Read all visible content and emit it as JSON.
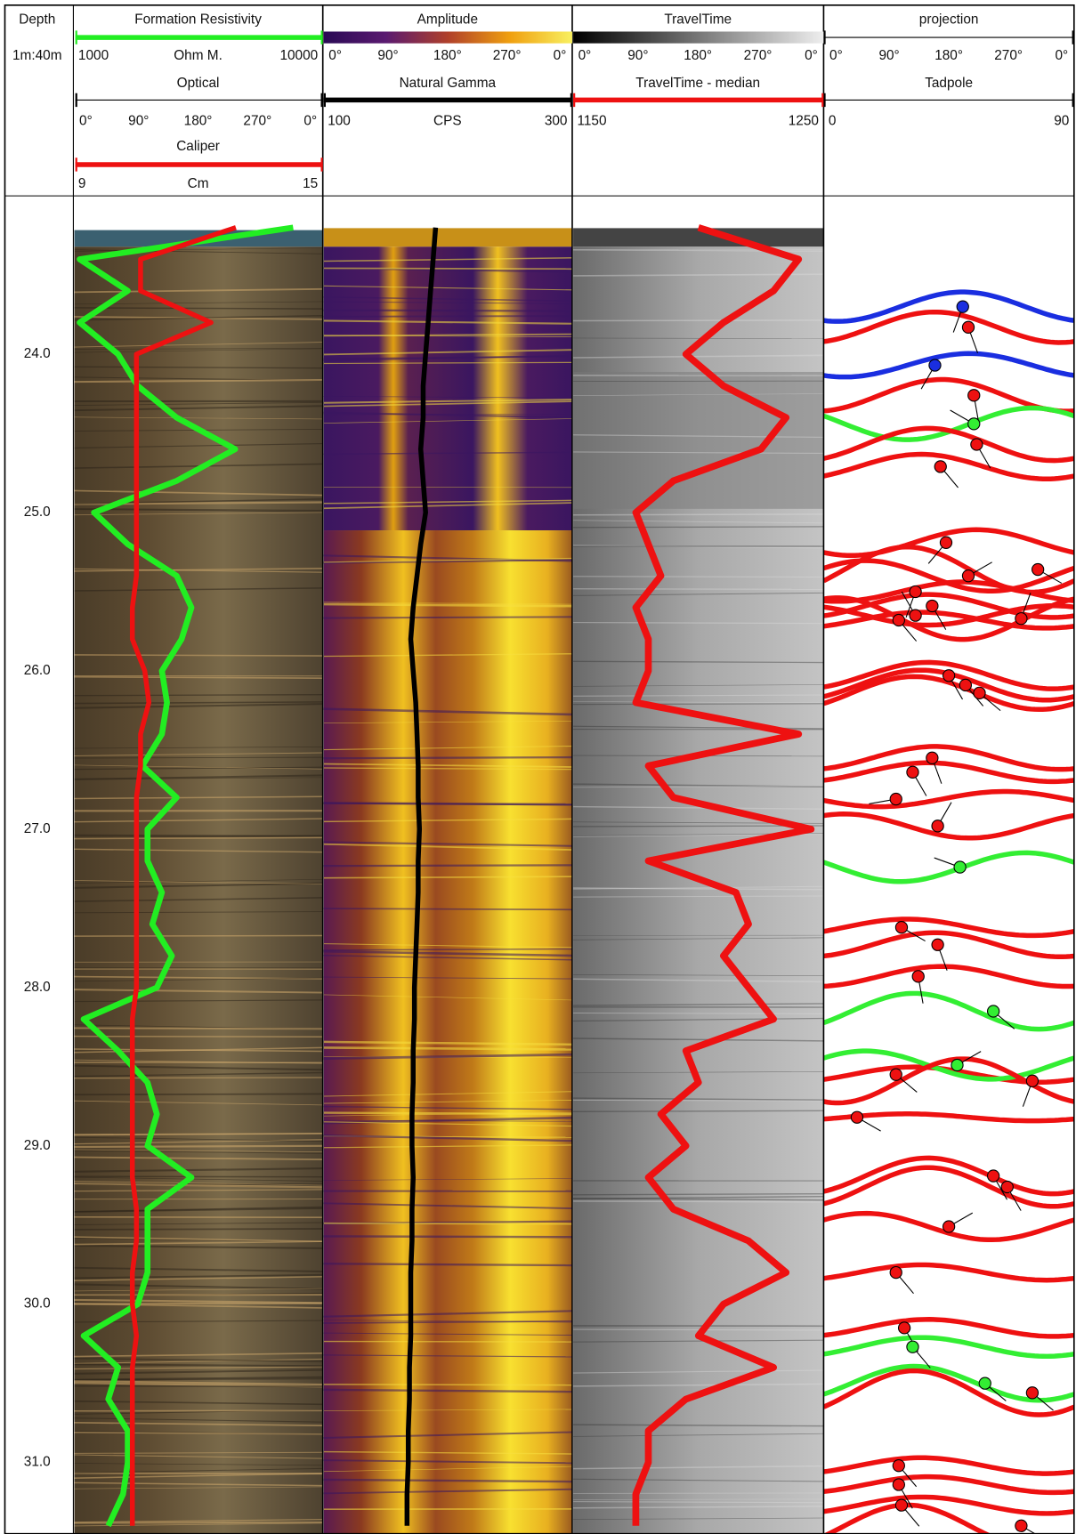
{
  "depth_track": {
    "title": "Depth",
    "scale": "1m:40m",
    "ylim": [
      23.0,
      31.45
    ],
    "ticks": [
      {
        "value": 24,
        "label": "24.0"
      },
      {
        "value": 25,
        "label": "25.0"
      },
      {
        "value": 26,
        "label": "26.0"
      },
      {
        "value": 27,
        "label": "27.0"
      },
      {
        "value": 28,
        "label": "28.0"
      },
      {
        "value": 29,
        "label": "29.0"
      },
      {
        "value": 30,
        "label": "30.0"
      },
      {
        "value": 31,
        "label": "31.0"
      }
    ]
  },
  "azimuth_ticks": [
    {
      "value": 0,
      "label": "0°"
    },
    {
      "value": 90,
      "label": "90°"
    },
    {
      "value": 180,
      "label": "180°"
    },
    {
      "value": 270,
      "label": "270°"
    },
    {
      "value": 360,
      "label": "0°"
    }
  ],
  "images": {
    "optical": "Optical",
    "amplitude": "Amplitude",
    "traveltime": "TravelTime"
  },
  "projection": {
    "title": "projection"
  },
  "depths": [
    23.2,
    23.4,
    23.6,
    23.8,
    24.0,
    24.2,
    24.4,
    24.6,
    24.8,
    25.0,
    25.2,
    25.4,
    25.6,
    25.8,
    26.0,
    26.2,
    26.4,
    26.6,
    26.8,
    27.0,
    27.2,
    27.4,
    27.6,
    27.8,
    28.0,
    28.2,
    28.4,
    28.6,
    28.8,
    29.0,
    29.2,
    29.4,
    29.6,
    29.8,
    30.0,
    30.2,
    30.4,
    30.6,
    30.8,
    31.0,
    31.2,
    31.4
  ],
  "curves": {
    "resistivity": {
      "title": "Formation Resistivity",
      "unit": "Ohm M.",
      "xlim": [
        1000,
        10000
      ],
      "log": true,
      "color": "#22ee22",
      "values": [
        7600,
        1050,
        1640,
        1050,
        1500,
        1800,
        2580,
        4440,
        2580,
        1200,
        1640,
        2580,
        2960,
        2700,
        2250,
        2360,
        2250,
        1880,
        2580,
        1970,
        1970,
        2250,
        2060,
        2470,
        2150,
        1090,
        1500,
        1970,
        2150,
        1970,
        2960,
        1970,
        1970,
        1970,
        1800,
        1090,
        1500,
        1370,
        1640,
        1640,
        1570,
        1370
      ]
    },
    "caliper": {
      "title": "Caliper",
      "unit": "Cm",
      "xlim": [
        9,
        15
      ],
      "color": "#ee1111",
      "values": [
        12.9,
        10.6,
        10.6,
        12.3,
        10.5,
        10.5,
        10.5,
        10.5,
        10.5,
        10.5,
        10.5,
        10.5,
        10.4,
        10.4,
        10.7,
        10.8,
        10.6,
        10.6,
        10.5,
        10.5,
        10.5,
        10.5,
        10.5,
        10.5,
        10.5,
        10.4,
        10.4,
        10.4,
        10.4,
        10.4,
        10.4,
        10.5,
        10.5,
        10.4,
        10.4,
        10.5,
        10.4,
        10.4,
        10.4,
        10.4,
        10.4,
        10.4
      ]
    },
    "gamma": {
      "title": "Natural Gamma",
      "unit": "CPS",
      "xlim": [
        100,
        300
      ],
      "color": "#000000",
      "values": [
        190,
        188,
        186,
        184,
        182,
        180,
        180,
        178,
        180,
        182,
        178,
        175,
        172,
        170,
        172,
        174,
        175,
        176,
        176,
        177,
        176,
        176,
        175,
        174,
        173,
        173,
        172,
        172,
        171,
        171,
        172,
        171,
        171,
        170,
        170,
        170,
        169,
        169,
        168,
        168,
        167,
        167
      ]
    },
    "traveltime_median": {
      "title": "TravelTime  - median",
      "xlim": [
        1150,
        1250
      ],
      "color": "#ee1111",
      "values": [
        1200,
        1240,
        1230,
        1210,
        1195,
        1210,
        1235,
        1225,
        1190,
        1175,
        1180,
        1185,
        1175,
        1180,
        1180,
        1175,
        1240,
        1180,
        1190,
        1245,
        1180,
        1215,
        1220,
        1210,
        1220,
        1230,
        1195,
        1200,
        1185,
        1195,
        1180,
        1190,
        1220,
        1235,
        1210,
        1200,
        1230,
        1195,
        1180,
        1180,
        1175,
        1175
      ]
    }
  },
  "tadpole": {
    "title": "Tadpole",
    "xlim": [
      0,
      90
    ],
    "picks": [
      {
        "depth": 23.7,
        "dip": 50,
        "azimuth": 200,
        "color": "#1a2ee0"
      },
      {
        "depth": 23.83,
        "dip": 52,
        "azimuth": 160,
        "color": "#ee1111"
      },
      {
        "depth": 24.07,
        "dip": 40,
        "azimuth": 210,
        "color": "#1a2ee0"
      },
      {
        "depth": 24.26,
        "dip": 54,
        "azimuth": 170,
        "color": "#ee1111"
      },
      {
        "depth": 24.44,
        "dip": 54,
        "azimuth": 300,
        "color": "#33ee33"
      },
      {
        "depth": 24.57,
        "dip": 55,
        "azimuth": 150,
        "color": "#ee1111"
      },
      {
        "depth": 24.71,
        "dip": 42,
        "azimuth": 140,
        "color": "#ee1111"
      },
      {
        "depth": 25.19,
        "dip": 44,
        "azimuth": 220,
        "color": "#ee1111"
      },
      {
        "depth": 25.4,
        "dip": 52,
        "azimuth": 60,
        "color": "#ee1111"
      },
      {
        "depth": 25.36,
        "dip": 77,
        "azimuth": 120,
        "color": "#ee1111"
      },
      {
        "depth": 25.5,
        "dip": 33,
        "azimuth": 200,
        "color": "#ee1111"
      },
      {
        "depth": 25.59,
        "dip": 39,
        "azimuth": 150,
        "color": "#ee1111"
      },
      {
        "depth": 25.65,
        "dip": 33,
        "azimuth": 330,
        "color": "#ee1111"
      },
      {
        "depth": 25.68,
        "dip": 27,
        "azimuth": 140,
        "color": "#ee1111"
      },
      {
        "depth": 25.67,
        "dip": 71,
        "azimuth": 20,
        "color": "#ee1111"
      },
      {
        "depth": 26.03,
        "dip": 45,
        "azimuth": 150,
        "color": "#ee1111"
      },
      {
        "depth": 26.09,
        "dip": 51,
        "azimuth": 140,
        "color": "#ee1111"
      },
      {
        "depth": 26.14,
        "dip": 56,
        "azimuth": 130,
        "color": "#ee1111"
      },
      {
        "depth": 26.55,
        "dip": 39,
        "azimuth": 160,
        "color": "#ee1111"
      },
      {
        "depth": 26.64,
        "dip": 32,
        "azimuth": 150,
        "color": "#ee1111"
      },
      {
        "depth": 26.81,
        "dip": 26,
        "azimuth": 260,
        "color": "#ee1111"
      },
      {
        "depth": 26.98,
        "dip": 41,
        "azimuth": 30,
        "color": "#ee1111"
      },
      {
        "depth": 27.24,
        "dip": 49,
        "azimuth": 290,
        "color": "#33ee33"
      },
      {
        "depth": 27.62,
        "dip": 28,
        "azimuth": 120,
        "color": "#ee1111"
      },
      {
        "depth": 27.73,
        "dip": 41,
        "azimuth": 160,
        "color": "#ee1111"
      },
      {
        "depth": 27.93,
        "dip": 34,
        "azimuth": 170,
        "color": "#ee1111"
      },
      {
        "depth": 28.15,
        "dip": 61,
        "azimuth": 130,
        "color": "#33ee33"
      },
      {
        "depth": 28.55,
        "dip": 26,
        "azimuth": 130,
        "color": "#ee1111"
      },
      {
        "depth": 28.49,
        "dip": 48,
        "azimuth": 60,
        "color": "#33ee33"
      },
      {
        "depth": 28.59,
        "dip": 75,
        "azimuth": 200,
        "color": "#ee1111"
      },
      {
        "depth": 28.82,
        "dip": 12,
        "azimuth": 120,
        "color": "#ee1111"
      },
      {
        "depth": 29.19,
        "dip": 61,
        "azimuth": 150,
        "color": "#ee1111"
      },
      {
        "depth": 29.26,
        "dip": 66,
        "azimuth": 150,
        "color": "#ee1111"
      },
      {
        "depth": 29.51,
        "dip": 45,
        "azimuth": 60,
        "color": "#ee1111"
      },
      {
        "depth": 29.8,
        "dip": 26,
        "azimuth": 140,
        "color": "#ee1111"
      },
      {
        "depth": 30.15,
        "dip": 29,
        "azimuth": 150,
        "color": "#ee1111"
      },
      {
        "depth": 30.27,
        "dip": 32,
        "azimuth": 140,
        "color": "#33ee33"
      },
      {
        "depth": 30.5,
        "dip": 58,
        "azimuth": 130,
        "color": "#33ee33"
      },
      {
        "depth": 30.56,
        "dip": 75,
        "azimuth": 130,
        "color": "#ee1111"
      },
      {
        "depth": 31.02,
        "dip": 27,
        "azimuth": 140,
        "color": "#ee1111"
      },
      {
        "depth": 31.14,
        "dip": 27,
        "azimuth": 150,
        "color": "#ee1111"
      },
      {
        "depth": 31.27,
        "dip": 28,
        "azimuth": 140,
        "color": "#ee1111"
      },
      {
        "depth": 31.4,
        "dip": 71,
        "azimuth": 120,
        "color": "#ee1111"
      }
    ]
  }
}
